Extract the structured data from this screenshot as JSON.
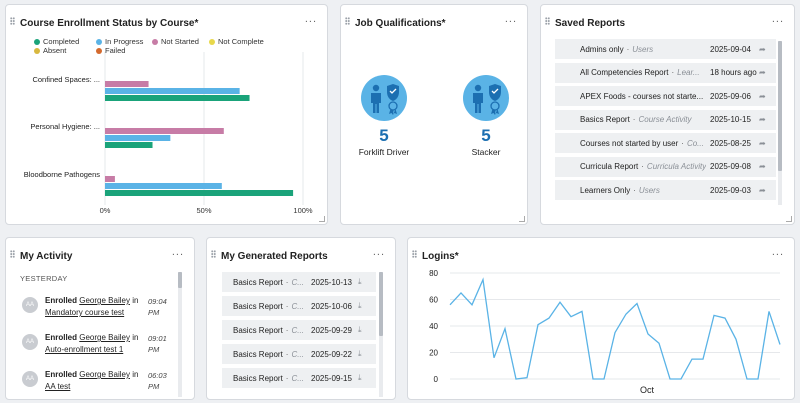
{
  "colors": {
    "completed": "#1aa37a",
    "in_progress": "#5ab3e6",
    "not_started": "#c77ca6",
    "not_complete": "#e8d84a",
    "absent": "#d8b840",
    "failed": "#d46a2e",
    "line": "#5ab3e6",
    "qual_circle": "#5ab3e6",
    "qual_count": "#1c6fb1"
  },
  "enrollment": {
    "title": "Course Enrollment Status by Course*",
    "more": "...",
    "legend": [
      "Completed",
      "In Progress",
      "Not Started",
      "Not Complete",
      "Absent",
      "Failed"
    ],
    "chart_data": {
      "type": "bar",
      "orientation": "horizontal",
      "categories": [
        "Confined Spaces: ...",
        "Personal Hygiene: ...",
        "Bloodborne Pathogens"
      ],
      "series": [
        {
          "name": "Not Started",
          "values": [
            22,
            60,
            5
          ]
        },
        {
          "name": "In Progress",
          "values": [
            68,
            33,
            59
          ]
        },
        {
          "name": "Completed",
          "values": [
            73,
            24,
            95
          ]
        }
      ],
      "xticks": [
        "0%",
        "50%",
        "100%"
      ],
      "xlim": [
        0,
        100
      ],
      "grid": true
    }
  },
  "qualifications": {
    "title": "Job Qualifications*",
    "more": "...",
    "items": [
      {
        "icon": "qualification-badge-icon",
        "count": "5",
        "label": "Forklift Driver"
      },
      {
        "icon": "qualification-badge-icon",
        "count": "5",
        "label": "Stacker"
      }
    ]
  },
  "saved_reports": {
    "title": "Saved Reports",
    "more": "...",
    "action_icon": "share-arrow-icon",
    "rows": [
      {
        "name": "Admins only",
        "sep": "·",
        "category": "Users",
        "date": "2025-09-04"
      },
      {
        "name": "All Competencies Report",
        "sep": "·",
        "category": "Lear...",
        "date": "18 hours ago"
      },
      {
        "name": "APEX Foods - courses not starte...",
        "sep": "",
        "category": "",
        "date": "2025-09-06"
      },
      {
        "name": "Basics Report",
        "sep": "·",
        "category": "Course Activity",
        "date": "2025-10-15"
      },
      {
        "name": "Courses not started by user",
        "sep": "·",
        "category": "Co...",
        "date": "2025-08-25"
      },
      {
        "name": "Curricula Report",
        "sep": "·",
        "category": "Curricula Activity",
        "date": "2025-09-08"
      },
      {
        "name": "Learners Only",
        "sep": "·",
        "category": "Users",
        "date": "2025-09-03"
      }
    ]
  },
  "activity": {
    "title": "My Activity",
    "more": "...",
    "section": "YESTERDAY",
    "items": [
      {
        "avatar": "AA",
        "action": "Enrolled",
        "user": "George Bailey",
        "prep": "in",
        "target": "Mandatory course test",
        "time": "09:04 PM"
      },
      {
        "avatar": "AA",
        "action": "Enrolled",
        "user": "George Bailey",
        "prep": "in",
        "target": "Auto-enrollment test 1",
        "time": "09:01 PM"
      },
      {
        "avatar": "AA",
        "action": "Enrolled",
        "user": "George Bailey",
        "prep": "in",
        "target": "AA test",
        "time": "06:03 PM"
      }
    ]
  },
  "generated": {
    "title": "My Generated Reports",
    "more": "...",
    "action_icon": "download-icon",
    "rows": [
      {
        "name": "Basics Report",
        "sep": "·",
        "category": "C...",
        "date": "2025-10-13"
      },
      {
        "name": "Basics Report",
        "sep": "·",
        "category": "C...",
        "date": "2025-10-06"
      },
      {
        "name": "Basics Report",
        "sep": "·",
        "category": "C...",
        "date": "2025-09-29"
      },
      {
        "name": "Basics Report",
        "sep": "·",
        "category": "C...",
        "date": "2025-09-22"
      },
      {
        "name": "Basics Report",
        "sep": "·",
        "category": "C...",
        "date": "2025-09-15"
      }
    ]
  },
  "logins": {
    "title": "Logins*",
    "more": "...",
    "chart_data": {
      "type": "line",
      "xlabel": "Oct",
      "ylim": [
        0,
        80
      ],
      "yticks": [
        0,
        20,
        40,
        60,
        80
      ],
      "values": [
        56,
        65,
        56,
        75,
        16,
        38,
        0,
        1,
        41,
        46,
        58,
        47,
        51,
        0,
        0,
        35,
        49,
        57,
        34,
        27,
        0,
        0,
        15,
        15,
        48,
        46,
        30,
        0,
        0,
        51,
        26
      ]
    }
  }
}
